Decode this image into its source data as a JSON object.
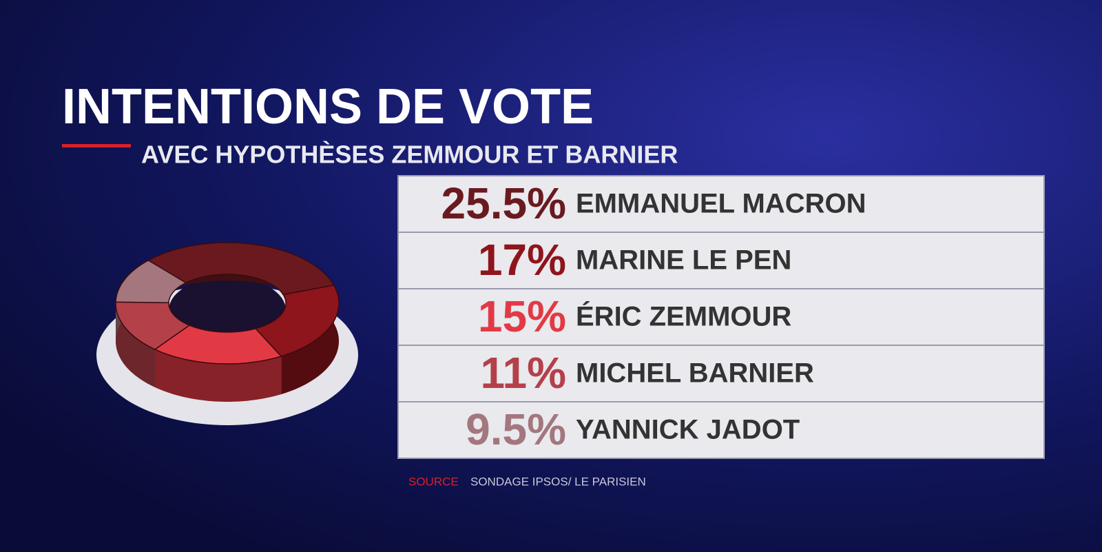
{
  "chart_data": {
    "type": "donut",
    "title": "INTENTIONS DE VOTE",
    "subtitle": "AVEC HYPOTHÈSES ZEMMOUR ET BARNIER",
    "categories": [
      "EMMANUEL MACRON",
      "MARINE LE PEN",
      "ÉRIC ZEMMOUR",
      "MICHEL BARNIER",
      "YANNICK JADOT"
    ],
    "values": [
      25.5,
      17,
      15,
      11,
      9.5
    ],
    "value_labels": [
      "25.5%",
      "17%",
      "15%",
      "11%",
      "9.5%"
    ],
    "colors": [
      "#6a1a1f",
      "#8e151b",
      "#e23a44",
      "#b4404a",
      "#a3777d"
    ],
    "source_label": "SOURCE",
    "source": "SONDAGE IPSOS/ LE PARISIEN"
  }
}
